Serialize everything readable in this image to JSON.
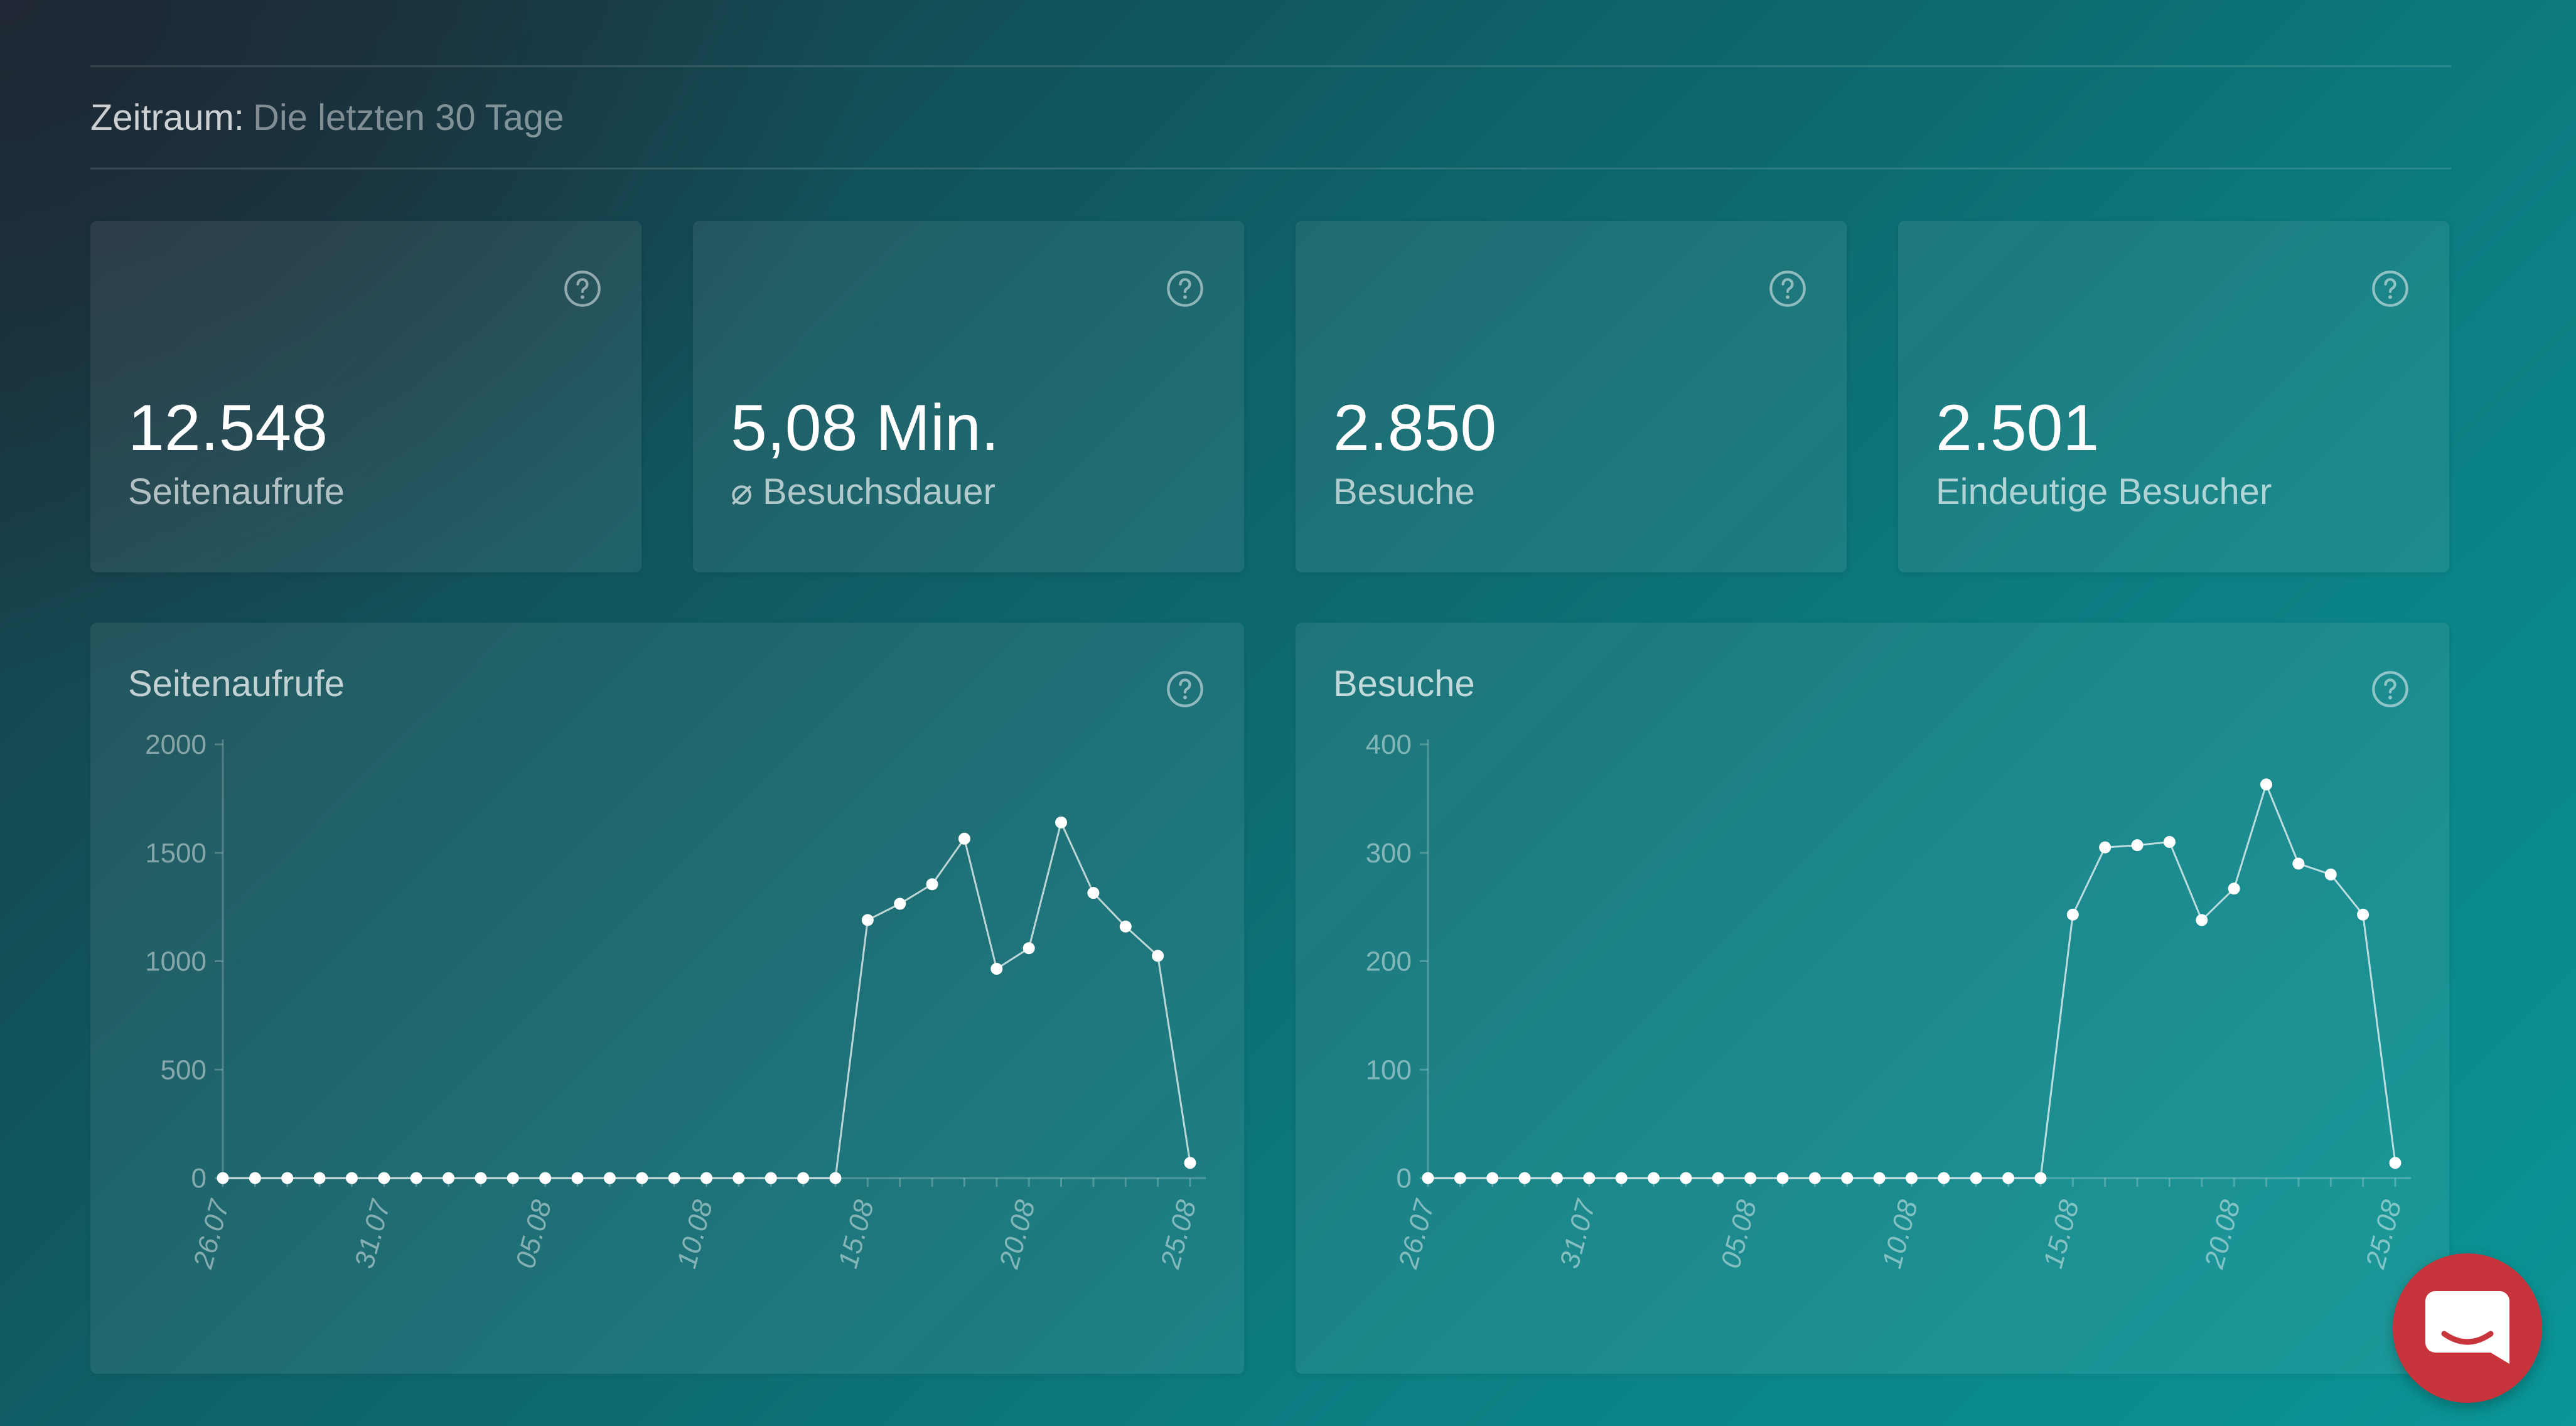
{
  "period": {
    "label": "Zeitraum:",
    "value": "Die letzten 30 Tage"
  },
  "kpis": [
    {
      "value": "12.548",
      "label": "Seitenaufrufe",
      "help_icon": "question-circle-icon"
    },
    {
      "value": "5,08 Min.",
      "label": "⌀ Besuchsdauer",
      "help_icon": "question-circle-icon"
    },
    {
      "value": "2.850",
      "label": "Besuche",
      "help_icon": "question-circle-icon"
    },
    {
      "value": "2.501",
      "label": "Eindeutige Besucher",
      "help_icon": "question-circle-icon"
    }
  ],
  "charts": [
    {
      "title": "Seitenaufrufe"
    },
    {
      "title": "Besuche"
    }
  ],
  "chat_button": {
    "icon": "chat-bubble-icon",
    "color": "#c7343b"
  },
  "chart_data": [
    {
      "type": "line",
      "title": "Seitenaufrufe",
      "xlabel": "",
      "ylabel": "",
      "ylim": [
        0,
        2000
      ],
      "yticks": [
        0,
        500,
        1000,
        1500,
        2000
      ],
      "x": [
        "26.07",
        "27.07",
        "28.07",
        "29.07",
        "30.07",
        "31.07",
        "01.08",
        "02.08",
        "03.08",
        "04.08",
        "05.08",
        "06.08",
        "07.08",
        "08.08",
        "09.08",
        "10.08",
        "11.08",
        "12.08",
        "13.08",
        "14.08",
        "15.08",
        "16.08",
        "17.08",
        "18.08",
        "19.08",
        "20.08",
        "21.08",
        "22.08",
        "23.08",
        "24.08",
        "25.08"
      ],
      "xtick_labels": [
        "26.07",
        "31.07",
        "05.08",
        "10.08",
        "15.08",
        "20.08",
        "25.08"
      ],
      "values": [
        0,
        0,
        0,
        0,
        0,
        0,
        0,
        0,
        0,
        0,
        0,
        0,
        0,
        0,
        0,
        0,
        0,
        0,
        0,
        0,
        1190,
        1265,
        1355,
        1565,
        965,
        1060,
        1640,
        1315,
        1160,
        1025,
        70
      ],
      "grid": false,
      "color": "#ffffff"
    },
    {
      "type": "line",
      "title": "Besuche",
      "xlabel": "",
      "ylabel": "",
      "ylim": [
        0,
        400
      ],
      "yticks": [
        0,
        100,
        200,
        300,
        400
      ],
      "x": [
        "26.07",
        "27.07",
        "28.07",
        "29.07",
        "30.07",
        "31.07",
        "01.08",
        "02.08",
        "03.08",
        "04.08",
        "05.08",
        "06.08",
        "07.08",
        "08.08",
        "09.08",
        "10.08",
        "11.08",
        "12.08",
        "13.08",
        "14.08",
        "15.08",
        "16.08",
        "17.08",
        "18.08",
        "19.08",
        "20.08",
        "21.08",
        "22.08",
        "23.08",
        "24.08",
        "25.08"
      ],
      "xtick_labels": [
        "26.07",
        "31.07",
        "05.08",
        "10.08",
        "15.08",
        "20.08",
        "25.08"
      ],
      "values": [
        0,
        0,
        0,
        0,
        0,
        0,
        0,
        0,
        0,
        0,
        0,
        0,
        0,
        0,
        0,
        0,
        0,
        0,
        0,
        0,
        243,
        305,
        307,
        310,
        238,
        267,
        363,
        290,
        280,
        243,
        14
      ],
      "grid": false,
      "color": "#ffffff"
    }
  ]
}
